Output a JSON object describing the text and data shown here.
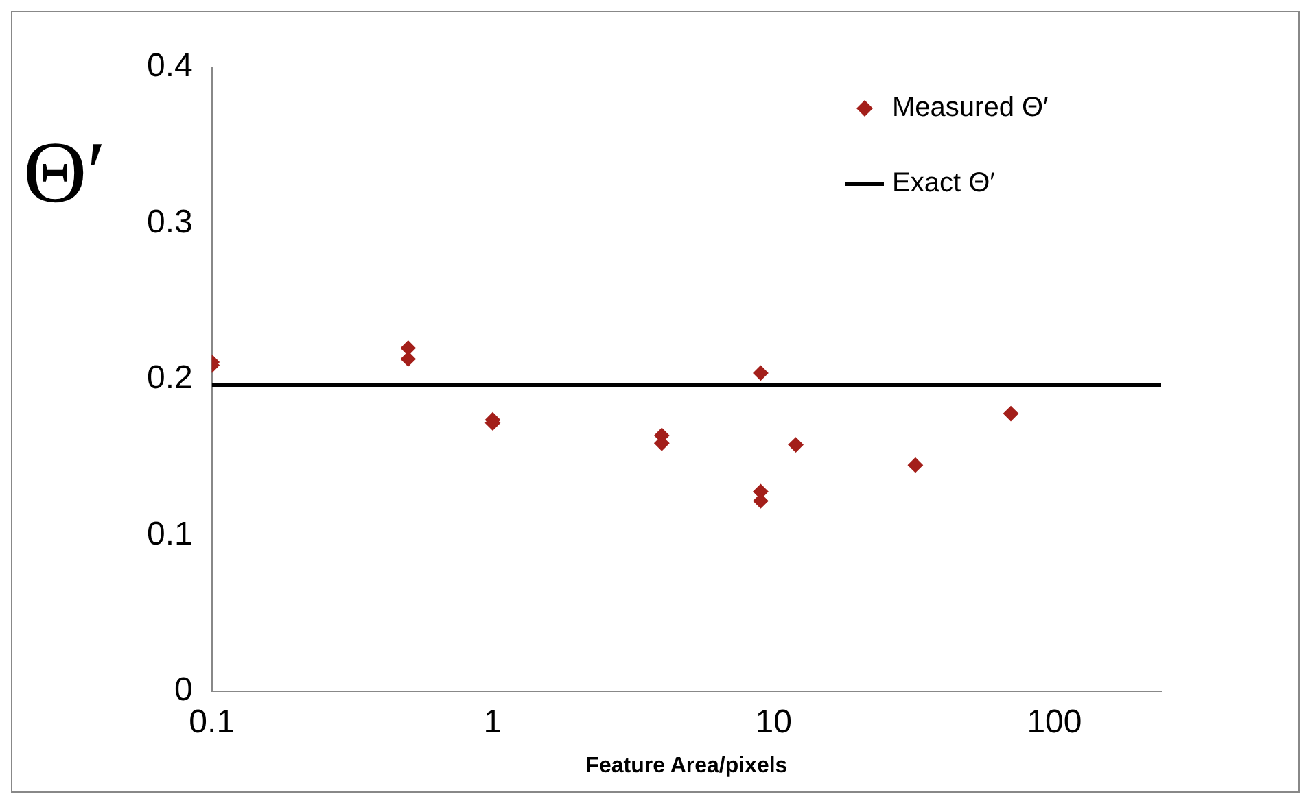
{
  "chart_data": {
    "type": "scatter",
    "xlabel": "Feature Area/pixels",
    "ylabel": "Θ′",
    "log": "x",
    "grid": false,
    "legend": "top right",
    "marker": "diamond",
    "xlim": [
      0.1,
      240
    ],
    "xticks": [
      0.1,
      1,
      10,
      100
    ],
    "ylim": [
      0,
      0.4
    ],
    "yticks": [
      0,
      0.1,
      0.2,
      0.3,
      0.4
    ],
    "series": [
      {
        "name": "Measured Θ′",
        "type": "scatter",
        "color": "#a31f1a",
        "x": [
          0.1,
          0.1,
          0.5,
          0.5,
          1,
          1,
          4,
          4,
          9,
          9,
          9,
          12,
          32,
          70
        ],
        "values": [
          0.211,
          0.209,
          0.22,
          0.213,
          0.174,
          0.172,
          0.164,
          0.159,
          0.204,
          0.128,
          0.122,
          0.158,
          0.145,
          0.178
        ]
      },
      {
        "name": "Exact Θ′",
        "type": "line",
        "color": "#000000",
        "line_style": "solid",
        "marker": "none",
        "x": [
          0.1,
          240
        ],
        "values": [
          0.196,
          0.196
        ]
      }
    ]
  }
}
